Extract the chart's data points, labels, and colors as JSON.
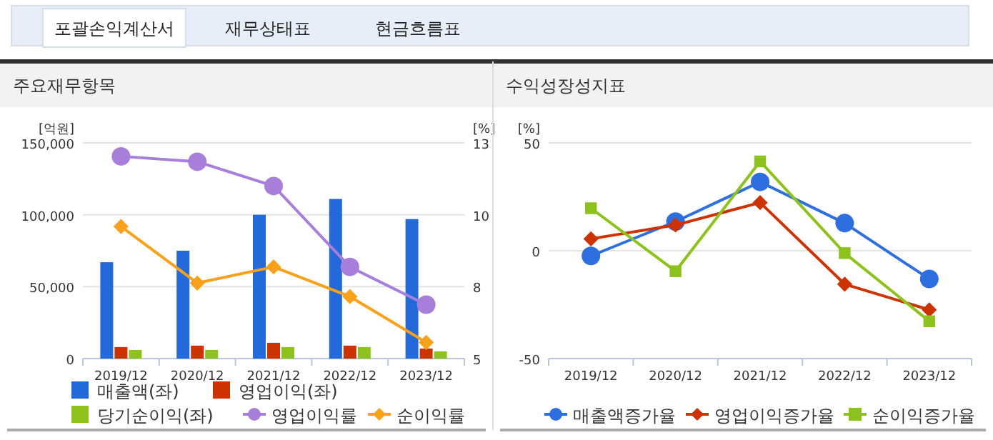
{
  "chart_data": [
    {
      "type": "bar",
      "title": "주요재무항목",
      "ylabel": "[억원]",
      "y2label": "[%]",
      "annotations": [
        "포괄손익계산서",
        "재무상태표",
        "현금흐름표"
      ],
      "categories": [
        "2019/12",
        "2020/12",
        "2021/12",
        "2022/12",
        "2023/12"
      ],
      "series": [
        {
          "name": "매출액(좌)",
          "color": "#2369d9",
          "values": [
            67000,
            75000,
            100000,
            111000,
            97000
          ]
        },
        {
          "name": "영업이익(좌)",
          "color": "#cc3300",
          "values": [
            8000,
            9000,
            11000,
            9000,
            7000
          ]
        },
        {
          "name": "당기순이익(좌)",
          "color": "#8cc21b",
          "values": [
            6000,
            6000,
            8000,
            8000,
            5000
          ]
        },
        {
          "name": "영업이익률",
          "type": "line",
          "axis": "y2",
          "marker": "circle",
          "color": "#a77ed9",
          "values": [
            12.5,
            12.3,
            11.4,
            8.4,
            7.0
          ]
        },
        {
          "name": "순이익률",
          "type": "line",
          "axis": "y2",
          "marker": "diamond",
          "color": "#f9a11b",
          "values": [
            9.9,
            7.8,
            8.4,
            7.3,
            5.6
          ]
        }
      ],
      "ylim": [
        0,
        150000
      ],
      "yticks": [
        0,
        {
          "value": 50000,
          "label": "50,000"
        },
        {
          "value": 100000,
          "label": "100,000"
        },
        {
          "value": 150000,
          "label": "150,000"
        }
      ],
      "y2lim": [
        5,
        13
      ],
      "y2ticks": [
        5,
        {
          "value": 7.67,
          "label": "8"
        },
        {
          "value": 10.33,
          "label": "10"
        },
        13
      ],
      "grid": "y",
      "legend": "bottom"
    },
    {
      "type": "line",
      "title": "수익성장성지표",
      "ylabel": "[%]",
      "categories": [
        "2019/12",
        "2020/12",
        "2021/12",
        "2022/12",
        "2023/12"
      ],
      "series": [
        {
          "name": "매출액증가율",
          "marker": "circle",
          "color": "#2e6fe0",
          "values": [
            -2.4,
            13.5,
            31.9,
            12.8,
            -13.1
          ]
        },
        {
          "name": "영업이익증가율",
          "marker": "diamond",
          "color": "#cc3300",
          "values": [
            5.5,
            11.9,
            22.3,
            -15.5,
            -27.4
          ]
        },
        {
          "name": "순이익증가율",
          "marker": "square",
          "color": "#8cc21b",
          "values": [
            19.7,
            -9.5,
            41.4,
            -1.1,
            -32.7
          ]
        }
      ],
      "ylim": [
        -50,
        50
      ],
      "yticks": [
        -50,
        0,
        50
      ],
      "grid": "y",
      "legend": "bottom"
    }
  ]
}
